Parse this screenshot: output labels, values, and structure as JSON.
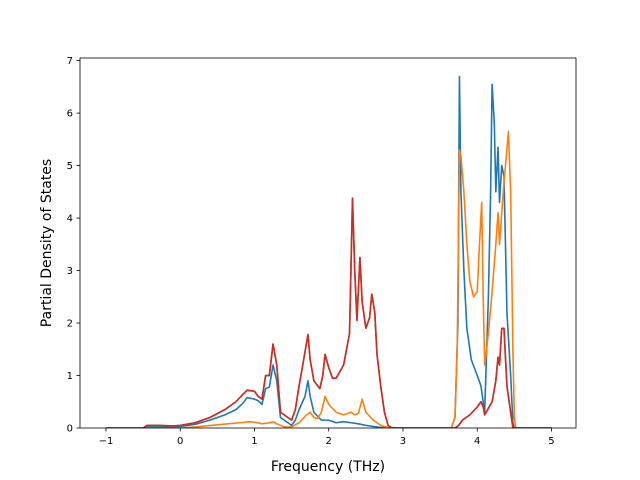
{
  "chart_data": {
    "type": "line",
    "title": "",
    "xlabel": "Frequency (THz)",
    "ylabel": "Partial Density of States",
    "xlim": [
      -1.35,
      5.33
    ],
    "ylim": [
      0,
      7.05
    ],
    "xticks": [
      "−1",
      "0",
      "1",
      "2",
      "3",
      "4",
      "5"
    ],
    "xtick_values": [
      -1,
      0,
      1,
      2,
      3,
      4,
      5
    ],
    "yticks": [
      "0",
      "1",
      "2",
      "3",
      "4",
      "5",
      "6",
      "7"
    ],
    "ytick_values": [
      0,
      1,
      2,
      3,
      4,
      5,
      6,
      7
    ],
    "grid": false,
    "legend": false,
    "series": [
      {
        "color": "#1f77b4",
        "points": [
          [
            -1.0,
            0.0
          ],
          [
            -0.5,
            0.0
          ],
          [
            -0.45,
            0.02
          ],
          [
            -0.3,
            0.02
          ],
          [
            -0.1,
            0.02
          ],
          [
            0.0,
            0.03
          ],
          [
            0.2,
            0.07
          ],
          [
            0.4,
            0.15
          ],
          [
            0.6,
            0.25
          ],
          [
            0.75,
            0.35
          ],
          [
            0.85,
            0.48
          ],
          [
            0.9,
            0.58
          ],
          [
            1.0,
            0.55
          ],
          [
            1.05,
            0.52
          ],
          [
            1.1,
            0.45
          ],
          [
            1.15,
            0.75
          ],
          [
            1.2,
            0.78
          ],
          [
            1.25,
            1.2
          ],
          [
            1.3,
            0.9
          ],
          [
            1.35,
            0.2
          ],
          [
            1.45,
            0.1
          ],
          [
            1.5,
            0.05
          ],
          [
            1.55,
            0.15
          ],
          [
            1.6,
            0.35
          ],
          [
            1.68,
            0.6
          ],
          [
            1.72,
            0.9
          ],
          [
            1.75,
            0.6
          ],
          [
            1.8,
            0.3
          ],
          [
            1.9,
            0.15
          ],
          [
            2.0,
            0.15
          ],
          [
            2.1,
            0.1
          ],
          [
            2.2,
            0.12
          ],
          [
            2.3,
            0.1
          ],
          [
            2.4,
            0.08
          ],
          [
            2.5,
            0.05
          ],
          [
            2.6,
            0.03
          ],
          [
            2.7,
            0.01
          ],
          [
            2.8,
            0.0
          ],
          [
            3.0,
            0.0
          ],
          [
            3.65,
            0.0
          ],
          [
            3.7,
            0.2
          ],
          [
            3.74,
            2.0
          ],
          [
            3.76,
            6.7
          ],
          [
            3.78,
            4.5
          ],
          [
            3.82,
            3.0
          ],
          [
            3.86,
            1.9
          ],
          [
            3.92,
            1.3
          ],
          [
            4.0,
            1.0
          ],
          [
            4.05,
            0.8
          ],
          [
            4.1,
            0.3
          ],
          [
            4.15,
            2.5
          ],
          [
            4.18,
            4.5
          ],
          [
            4.2,
            6.55
          ],
          [
            4.23,
            5.8
          ],
          [
            4.25,
            4.5
          ],
          [
            4.28,
            5.35
          ],
          [
            4.3,
            4.3
          ],
          [
            4.33,
            5.0
          ],
          [
            4.36,
            4.8
          ],
          [
            4.4,
            2.2
          ],
          [
            4.45,
            1.0
          ],
          [
            4.48,
            0.1
          ],
          [
            4.5,
            0.0
          ],
          [
            5.0,
            0.0
          ]
        ]
      },
      {
        "color": "#ff7f0e",
        "points": [
          [
            -1.0,
            0.0
          ],
          [
            -0.5,
            0.0
          ],
          [
            -0.3,
            0.0
          ],
          [
            0.0,
            0.0
          ],
          [
            0.2,
            0.02
          ],
          [
            0.5,
            0.06
          ],
          [
            0.8,
            0.1
          ],
          [
            0.95,
            0.12
          ],
          [
            1.05,
            0.1
          ],
          [
            1.1,
            0.08
          ],
          [
            1.2,
            0.1
          ],
          [
            1.25,
            0.12
          ],
          [
            1.3,
            0.08
          ],
          [
            1.4,
            0.02
          ],
          [
            1.5,
            0.02
          ],
          [
            1.6,
            0.1
          ],
          [
            1.7,
            0.25
          ],
          [
            1.75,
            0.3
          ],
          [
            1.8,
            0.2
          ],
          [
            1.85,
            0.18
          ],
          [
            1.9,
            0.3
          ],
          [
            1.95,
            0.6
          ],
          [
            2.0,
            0.45
          ],
          [
            2.1,
            0.3
          ],
          [
            2.2,
            0.25
          ],
          [
            2.3,
            0.3
          ],
          [
            2.35,
            0.25
          ],
          [
            2.4,
            0.28
          ],
          [
            2.45,
            0.55
          ],
          [
            2.5,
            0.3
          ],
          [
            2.6,
            0.15
          ],
          [
            2.7,
            0.05
          ],
          [
            2.8,
            0.01
          ],
          [
            3.0,
            0.0
          ],
          [
            3.65,
            0.0
          ],
          [
            3.7,
            0.2
          ],
          [
            3.73,
            1.5
          ],
          [
            3.76,
            5.3
          ],
          [
            3.78,
            5.2
          ],
          [
            3.82,
            4.5
          ],
          [
            3.86,
            3.5
          ],
          [
            3.9,
            2.8
          ],
          [
            3.95,
            2.5
          ],
          [
            4.0,
            2.6
          ],
          [
            4.03,
            3.5
          ],
          [
            4.06,
            4.3
          ],
          [
            4.08,
            2.5
          ],
          [
            4.1,
            1.2
          ],
          [
            4.15,
            1.8
          ],
          [
            4.2,
            2.6
          ],
          [
            4.25,
            3.5
          ],
          [
            4.28,
            4.1
          ],
          [
            4.3,
            3.5
          ],
          [
            4.35,
            4.5
          ],
          [
            4.42,
            5.65
          ],
          [
            4.45,
            4.5
          ],
          [
            4.48,
            1.5
          ],
          [
            4.5,
            0.2
          ],
          [
            4.52,
            0.0
          ],
          [
            5.0,
            0.0
          ]
        ]
      },
      {
        "color": "#2ca02c",
        "points": [
          [
            -1.0,
            0.0
          ],
          [
            -0.5,
            0.0
          ],
          [
            -0.45,
            0.05
          ],
          [
            -0.3,
            0.05
          ],
          [
            -0.1,
            0.04
          ],
          [
            0.0,
            0.05
          ],
          [
            0.2,
            0.1
          ],
          [
            0.4,
            0.2
          ],
          [
            0.6,
            0.35
          ],
          [
            0.75,
            0.5
          ],
          [
            0.85,
            0.65
          ],
          [
            0.9,
            0.72
          ],
          [
            1.0,
            0.7
          ],
          [
            1.05,
            0.6
          ],
          [
            1.1,
            0.55
          ],
          [
            1.15,
            1.0
          ],
          [
            1.2,
            1.0
          ],
          [
            1.25,
            1.6
          ],
          [
            1.3,
            1.2
          ],
          [
            1.35,
            0.3
          ],
          [
            1.45,
            0.2
          ],
          [
            1.5,
            0.15
          ],
          [
            1.55,
            0.35
          ],
          [
            1.6,
            0.8
          ],
          [
            1.65,
            1.2
          ],
          [
            1.72,
            1.78
          ],
          [
            1.75,
            1.3
          ],
          [
            1.8,
            0.9
          ],
          [
            1.88,
            0.75
          ],
          [
            1.92,
            1.0
          ],
          [
            1.95,
            1.4
          ],
          [
            2.0,
            1.15
          ],
          [
            2.05,
            0.95
          ],
          [
            2.1,
            0.95
          ],
          [
            2.2,
            1.2
          ],
          [
            2.28,
            1.8
          ],
          [
            2.32,
            4.38
          ],
          [
            2.35,
            3.0
          ],
          [
            2.38,
            2.05
          ],
          [
            2.42,
            3.25
          ],
          [
            2.45,
            2.4
          ],
          [
            2.5,
            1.9
          ],
          [
            2.55,
            2.1
          ],
          [
            2.58,
            2.55
          ],
          [
            2.62,
            2.2
          ],
          [
            2.65,
            1.4
          ],
          [
            2.7,
            0.8
          ],
          [
            2.75,
            0.3
          ],
          [
            2.8,
            0.05
          ],
          [
            2.85,
            0.0
          ],
          [
            3.0,
            0.0
          ],
          [
            3.7,
            0.0
          ],
          [
            3.75,
            0.05
          ],
          [
            3.8,
            0.15
          ],
          [
            3.9,
            0.25
          ],
          [
            4.0,
            0.4
          ],
          [
            4.05,
            0.5
          ],
          [
            4.08,
            0.4
          ],
          [
            4.1,
            0.25
          ],
          [
            4.12,
            0.3
          ],
          [
            4.2,
            0.5
          ],
          [
            4.25,
            0.9
          ],
          [
            4.28,
            1.35
          ],
          [
            4.3,
            1.2
          ],
          [
            4.33,
            1.9
          ],
          [
            4.36,
            1.9
          ],
          [
            4.4,
            0.8
          ],
          [
            4.45,
            0.3
          ],
          [
            4.48,
            0.0
          ],
          [
            5.0,
            0.0
          ]
        ]
      },
      {
        "color": "#d62728",
        "points": [
          [
            -1.0,
            0.0
          ],
          [
            -0.5,
            0.0
          ],
          [
            -0.45,
            0.05
          ],
          [
            -0.3,
            0.05
          ],
          [
            -0.1,
            0.04
          ],
          [
            0.0,
            0.05
          ],
          [
            0.2,
            0.1
          ],
          [
            0.4,
            0.2
          ],
          [
            0.6,
            0.35
          ],
          [
            0.75,
            0.5
          ],
          [
            0.85,
            0.65
          ],
          [
            0.9,
            0.72
          ],
          [
            1.0,
            0.7
          ],
          [
            1.05,
            0.6
          ],
          [
            1.1,
            0.55
          ],
          [
            1.15,
            1.0
          ],
          [
            1.2,
            1.0
          ],
          [
            1.25,
            1.6
          ],
          [
            1.3,
            1.2
          ],
          [
            1.35,
            0.3
          ],
          [
            1.45,
            0.2
          ],
          [
            1.5,
            0.15
          ],
          [
            1.55,
            0.35
          ],
          [
            1.6,
            0.8
          ],
          [
            1.65,
            1.2
          ],
          [
            1.72,
            1.78
          ],
          [
            1.75,
            1.3
          ],
          [
            1.8,
            0.9
          ],
          [
            1.88,
            0.75
          ],
          [
            1.92,
            1.0
          ],
          [
            1.95,
            1.4
          ],
          [
            2.0,
            1.15
          ],
          [
            2.05,
            0.95
          ],
          [
            2.1,
            0.95
          ],
          [
            2.2,
            1.2
          ],
          [
            2.28,
            1.8
          ],
          [
            2.32,
            4.38
          ],
          [
            2.35,
            3.0
          ],
          [
            2.38,
            2.05
          ],
          [
            2.42,
            3.25
          ],
          [
            2.45,
            2.4
          ],
          [
            2.5,
            1.9
          ],
          [
            2.55,
            2.1
          ],
          [
            2.58,
            2.55
          ],
          [
            2.62,
            2.2
          ],
          [
            2.65,
            1.4
          ],
          [
            2.7,
            0.8
          ],
          [
            2.75,
            0.3
          ],
          [
            2.8,
            0.05
          ],
          [
            2.85,
            0.0
          ],
          [
            3.0,
            0.0
          ],
          [
            3.7,
            0.0
          ],
          [
            3.75,
            0.05
          ],
          [
            3.8,
            0.15
          ],
          [
            3.9,
            0.25
          ],
          [
            4.0,
            0.4
          ],
          [
            4.05,
            0.5
          ],
          [
            4.08,
            0.4
          ],
          [
            4.1,
            0.25
          ],
          [
            4.12,
            0.3
          ],
          [
            4.2,
            0.5
          ],
          [
            4.25,
            0.9
          ],
          [
            4.28,
            1.35
          ],
          [
            4.3,
            1.2
          ],
          [
            4.33,
            1.9
          ],
          [
            4.36,
            1.9
          ],
          [
            4.4,
            0.8
          ],
          [
            4.45,
            0.3
          ],
          [
            4.48,
            0.0
          ],
          [
            5.0,
            0.0
          ]
        ]
      }
    ]
  }
}
